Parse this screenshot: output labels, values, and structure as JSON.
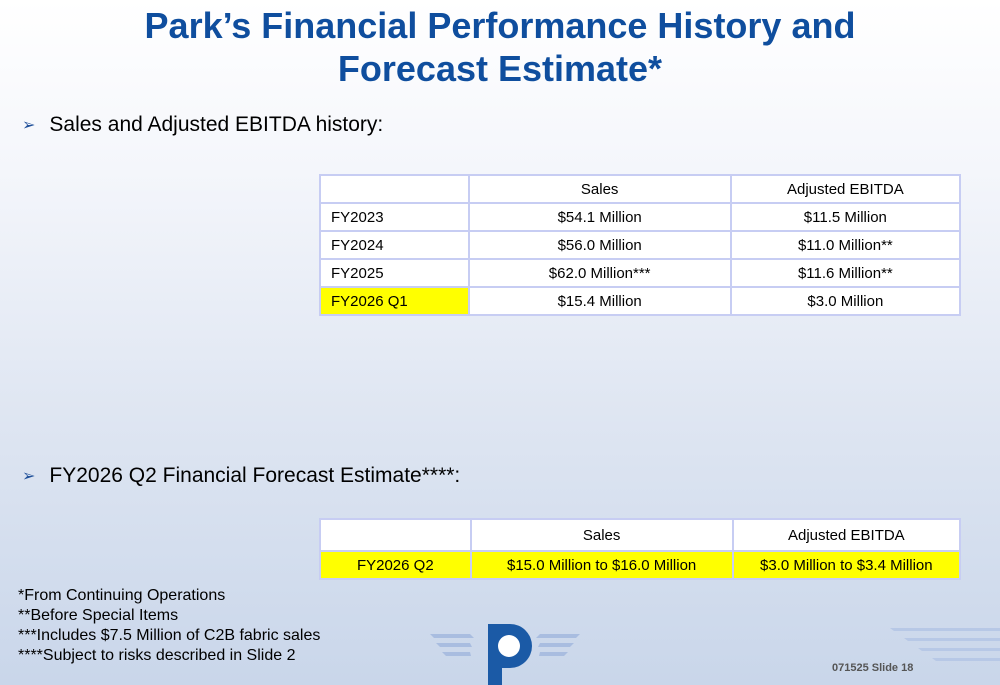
{
  "title": {
    "line1": "Park’s Financial Performance History and",
    "line2": "Forecast Estimate*"
  },
  "section1": {
    "bullet": "Sales and Adjusted EBITDA history:",
    "headers": [
      "",
      "Sales",
      "Adjusted EBITDA"
    ],
    "rows": [
      {
        "period": "FY2023",
        "sales": "$54.1 Million",
        "ebitda": "$11.5 Million"
      },
      {
        "period": "FY2024",
        "sales": "$56.0 Million",
        "ebitda": "$11.0 Million**"
      },
      {
        "period": "FY2025",
        "sales": "$62.0 Million***",
        "ebitda": "$11.6 Million**"
      },
      {
        "period": "FY2026 Q1",
        "sales": "$15.4 Million",
        "ebitda": "$3.0 Million"
      }
    ]
  },
  "section2": {
    "bullet": "FY2026 Q2 Financial Forecast  Estimate****:",
    "headers": [
      "",
      "Sales",
      "Adjusted EBITDA"
    ],
    "row": {
      "period": "FY2026 Q2",
      "sales": "$15.0 Million to $16.0 Million",
      "ebitda": "$3.0 Million to $3.4 Million"
    }
  },
  "footnotes": [
    "*From Continuing Operations",
    "**Before Special Items",
    "***Includes $7.5 Million of C2B fabric sales",
    "****Subject to risks described in Slide 2"
  ],
  "slide_label": "071525 Slide 18",
  "colors": {
    "title": "#0f4e9e",
    "highlight": "#ffff00",
    "table_border": "#c7cdf3",
    "logo": "#1b5aa6"
  },
  "icons": {
    "bullet": "arrowhead-right-icon",
    "logo": "park-p-logo-icon"
  }
}
